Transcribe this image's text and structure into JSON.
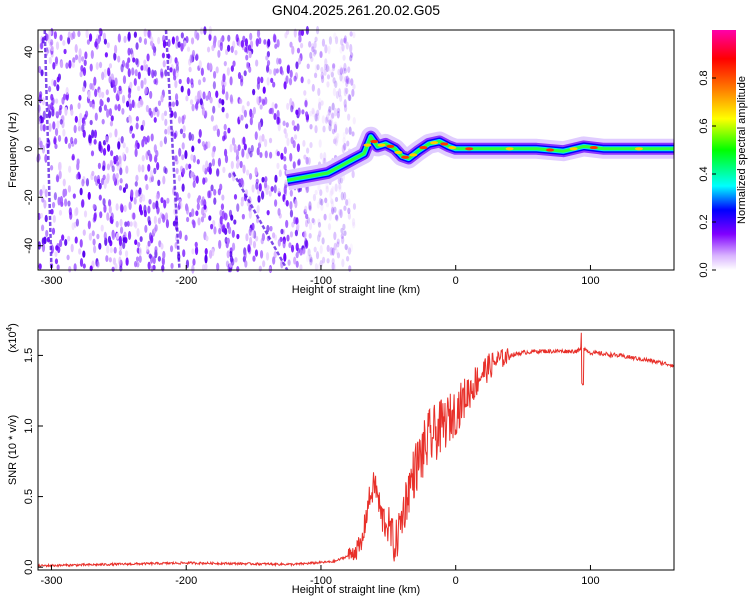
{
  "title": "GN04.2025.261.20.02.G05",
  "chart_data": [
    {
      "type": "heatmap",
      "xlabel": "Height of straight line (km)",
      "ylabel": "Frequency (Hz)",
      "xlim": [
        -310,
        162
      ],
      "ylim": [
        -50,
        49
      ],
      "x_ticks": [
        -300,
        -200,
        -100,
        0,
        100
      ],
      "y_ticks": [
        -40,
        -20,
        0,
        20,
        40
      ],
      "colorbar": {
        "label": "Normalized spectral amplitude",
        "range": [
          0,
          1
        ],
        "ticks": [
          "0.0",
          "0.2",
          "0.4",
          "0.6",
          "0.8"
        ]
      },
      "colormap": [
        "#ffffff",
        "#d9b3ff",
        "#8000ff",
        "#0000ff",
        "#00ffff",
        "#00ff00",
        "#ffff00",
        "#ff8000",
        "#ff0000",
        "#ff00ff"
      ],
      "ridge": {
        "description_points_x": [
          -125,
          -115,
          -105,
          -95,
          -85,
          -75,
          -68,
          -63,
          -58,
          -52,
          -45,
          -40,
          -35,
          -28,
          -20,
          -12,
          -5,
          0,
          20,
          60,
          80,
          95,
          110,
          162
        ],
        "description_points_y": [
          -13,
          -12,
          -11,
          -10,
          -7,
          -4,
          -2,
          5,
          1,
          2,
          0,
          -3,
          -4,
          -1,
          2,
          3,
          1,
          0,
          0,
          0,
          -1,
          1,
          0,
          0
        ]
      },
      "noise_region_x": [
        -310,
        -100
      ],
      "grid": false
    },
    {
      "type": "line",
      "xlabel": "Height of straight line (km)",
      "ylabel": "SNR (10 * v/v)",
      "y_multiplier_label": "(x10",
      "y_multiplier_exp": "4",
      "xlim": [
        -310,
        162
      ],
      "ylim": [
        -0.02,
        1.68
      ],
      "x_ticks": [
        -300,
        -200,
        -100,
        0,
        100
      ],
      "y_ticks": [
        "0.0",
        "0.5",
        "1.0",
        "1.5"
      ],
      "y_tick_values": [
        0,
        0.5,
        1.0,
        1.5
      ],
      "series": [
        {
          "color": "#e8302a",
          "x": [
            -310,
            -200,
            -120,
            -90,
            -80,
            -70,
            -65,
            -60,
            -55,
            -50,
            -45,
            -40,
            -35,
            -30,
            -25,
            -20,
            -15,
            -10,
            -5,
            0,
            10,
            20,
            30,
            40,
            50,
            60,
            70,
            80,
            90,
            95,
            100,
            120,
            140,
            162
          ],
          "y": [
            0.01,
            0.03,
            0.02,
            0.04,
            0.08,
            0.15,
            0.45,
            0.6,
            0.35,
            0.3,
            0.15,
            0.35,
            0.55,
            0.7,
            0.8,
            0.9,
            0.95,
            1.0,
            1.05,
            1.1,
            1.25,
            1.38,
            1.46,
            1.5,
            1.52,
            1.53,
            1.53,
            1.53,
            1.53,
            1.55,
            1.52,
            1.5,
            1.47,
            1.43
          ]
        }
      ],
      "grid": false
    }
  ]
}
